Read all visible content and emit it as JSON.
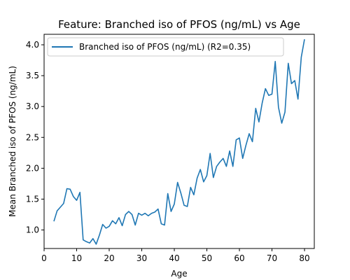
{
  "chart_data": {
    "type": "line",
    "title": "Feature: Branched iso of PFOS (ng/mL) vs Age",
    "xlabel": "Age",
    "ylabel": "Mean Branched iso of PFOS (ng/mL)",
    "xlim": [
      0,
      83
    ],
    "ylim": [
      0.7,
      4.17
    ],
    "xticks": [
      0,
      10,
      20,
      30,
      40,
      50,
      60,
      70,
      80
    ],
    "yticks": [
      1.0,
      1.5,
      2.0,
      2.5,
      3.0,
      3.5,
      4.0
    ],
    "xtick_labels": [
      "0",
      "10",
      "20",
      "30",
      "40",
      "50",
      "60",
      "70",
      "80"
    ],
    "ytick_labels": [
      "1.0",
      "1.5",
      "2.0",
      "2.5",
      "3.0",
      "3.5",
      "4.0"
    ],
    "grid": false,
    "legend_position": "upper left",
    "series": [
      {
        "name": "Branched iso of PFOS (ng/mL) (R2=0.35)",
        "color": "#1f77b4",
        "x": [
          3,
          4,
          5,
          6,
          7,
          8,
          9,
          10,
          11,
          12,
          13,
          14,
          15,
          16,
          17,
          18,
          19,
          20,
          21,
          22,
          23,
          24,
          25,
          26,
          27,
          28,
          29,
          30,
          31,
          32,
          33,
          34,
          35,
          36,
          37,
          38,
          39,
          40,
          41,
          42,
          43,
          44,
          45,
          46,
          47,
          48,
          49,
          50,
          51,
          52,
          53,
          54,
          55,
          56,
          57,
          58,
          59,
          60,
          61,
          62,
          63,
          64,
          65,
          66,
          67,
          68,
          69,
          70,
          71,
          72,
          73,
          74,
          75,
          76,
          77,
          78,
          79,
          80
        ],
        "y": [
          1.14,
          1.31,
          1.37,
          1.43,
          1.67,
          1.66,
          1.54,
          1.48,
          1.61,
          0.84,
          0.81,
          0.79,
          0.86,
          0.77,
          0.92,
          1.09,
          1.03,
          1.06,
          1.15,
          1.1,
          1.2,
          1.07,
          1.25,
          1.3,
          1.25,
          1.08,
          1.27,
          1.24,
          1.27,
          1.23,
          1.27,
          1.29,
          1.34,
          1.1,
          1.08,
          1.59,
          1.3,
          1.42,
          1.77,
          1.6,
          1.4,
          1.38,
          1.69,
          1.57,
          1.84,
          1.98,
          1.78,
          1.88,
          2.24,
          1.85,
          2.03,
          2.1,
          2.16,
          2.03,
          2.28,
          2.03,
          2.46,
          2.49,
          2.16,
          2.37,
          2.56,
          2.43,
          2.97,
          2.75,
          3.06,
          3.29,
          3.18,
          3.2,
          3.73,
          2.99,
          2.73,
          2.91,
          3.7,
          3.37,
          3.42,
          3.12,
          3.8,
          4.09
        ]
      }
    ]
  }
}
